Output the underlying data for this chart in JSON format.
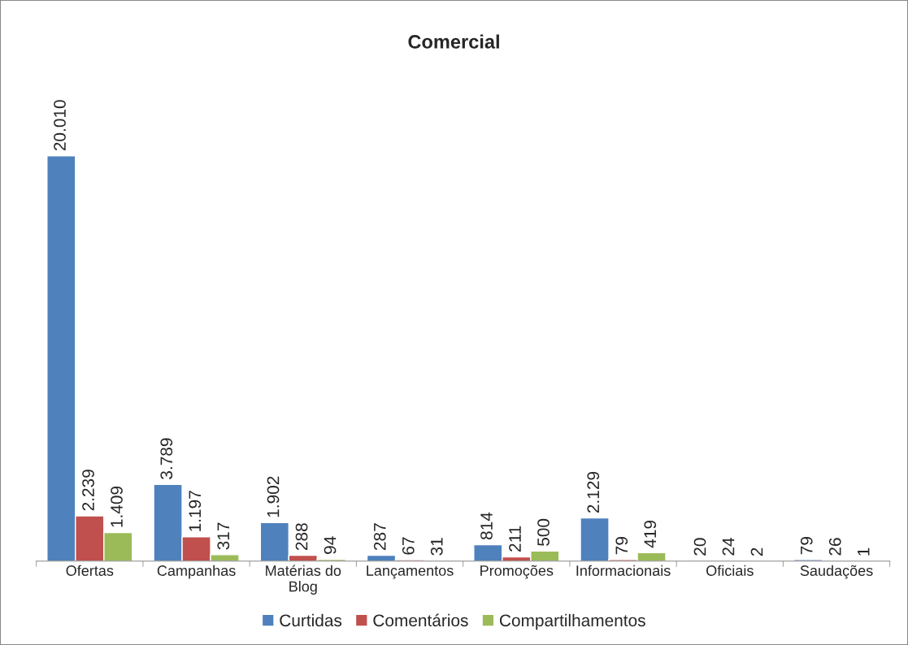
{
  "chart_data": {
    "type": "bar",
    "title": "Comercial",
    "categories": [
      "Ofertas",
      "Campanhas",
      "Matérias do\nBlog",
      "Lançamentos",
      "Promoções",
      "Informacionais",
      "Oficiais",
      "Saudações"
    ],
    "series": [
      {
        "name": "Curtidas",
        "color": "#4f81bd",
        "values": [
          20010,
          3789,
          1902,
          287,
          814,
          2129,
          20,
          79
        ],
        "value_labels": [
          "20.010",
          "3.789",
          "1.902",
          "287",
          "814",
          "2.129",
          "20",
          "79"
        ]
      },
      {
        "name": "Comentários",
        "color": "#c0504d",
        "values": [
          2239,
          1197,
          288,
          67,
          211,
          79,
          24,
          26
        ],
        "value_labels": [
          "2.239",
          "1.197",
          "288",
          "67",
          "211",
          "79",
          "24",
          "26"
        ]
      },
      {
        "name": "Compartilhamentos",
        "color": "#9bbb59",
        "values": [
          1409,
          317,
          94,
          31,
          500,
          419,
          2,
          1
        ],
        "value_labels": [
          "1.409",
          "317",
          "94",
          "31",
          "500",
          "419",
          "2",
          "1"
        ]
      }
    ],
    "legend": "bottom",
    "grid": false
  }
}
